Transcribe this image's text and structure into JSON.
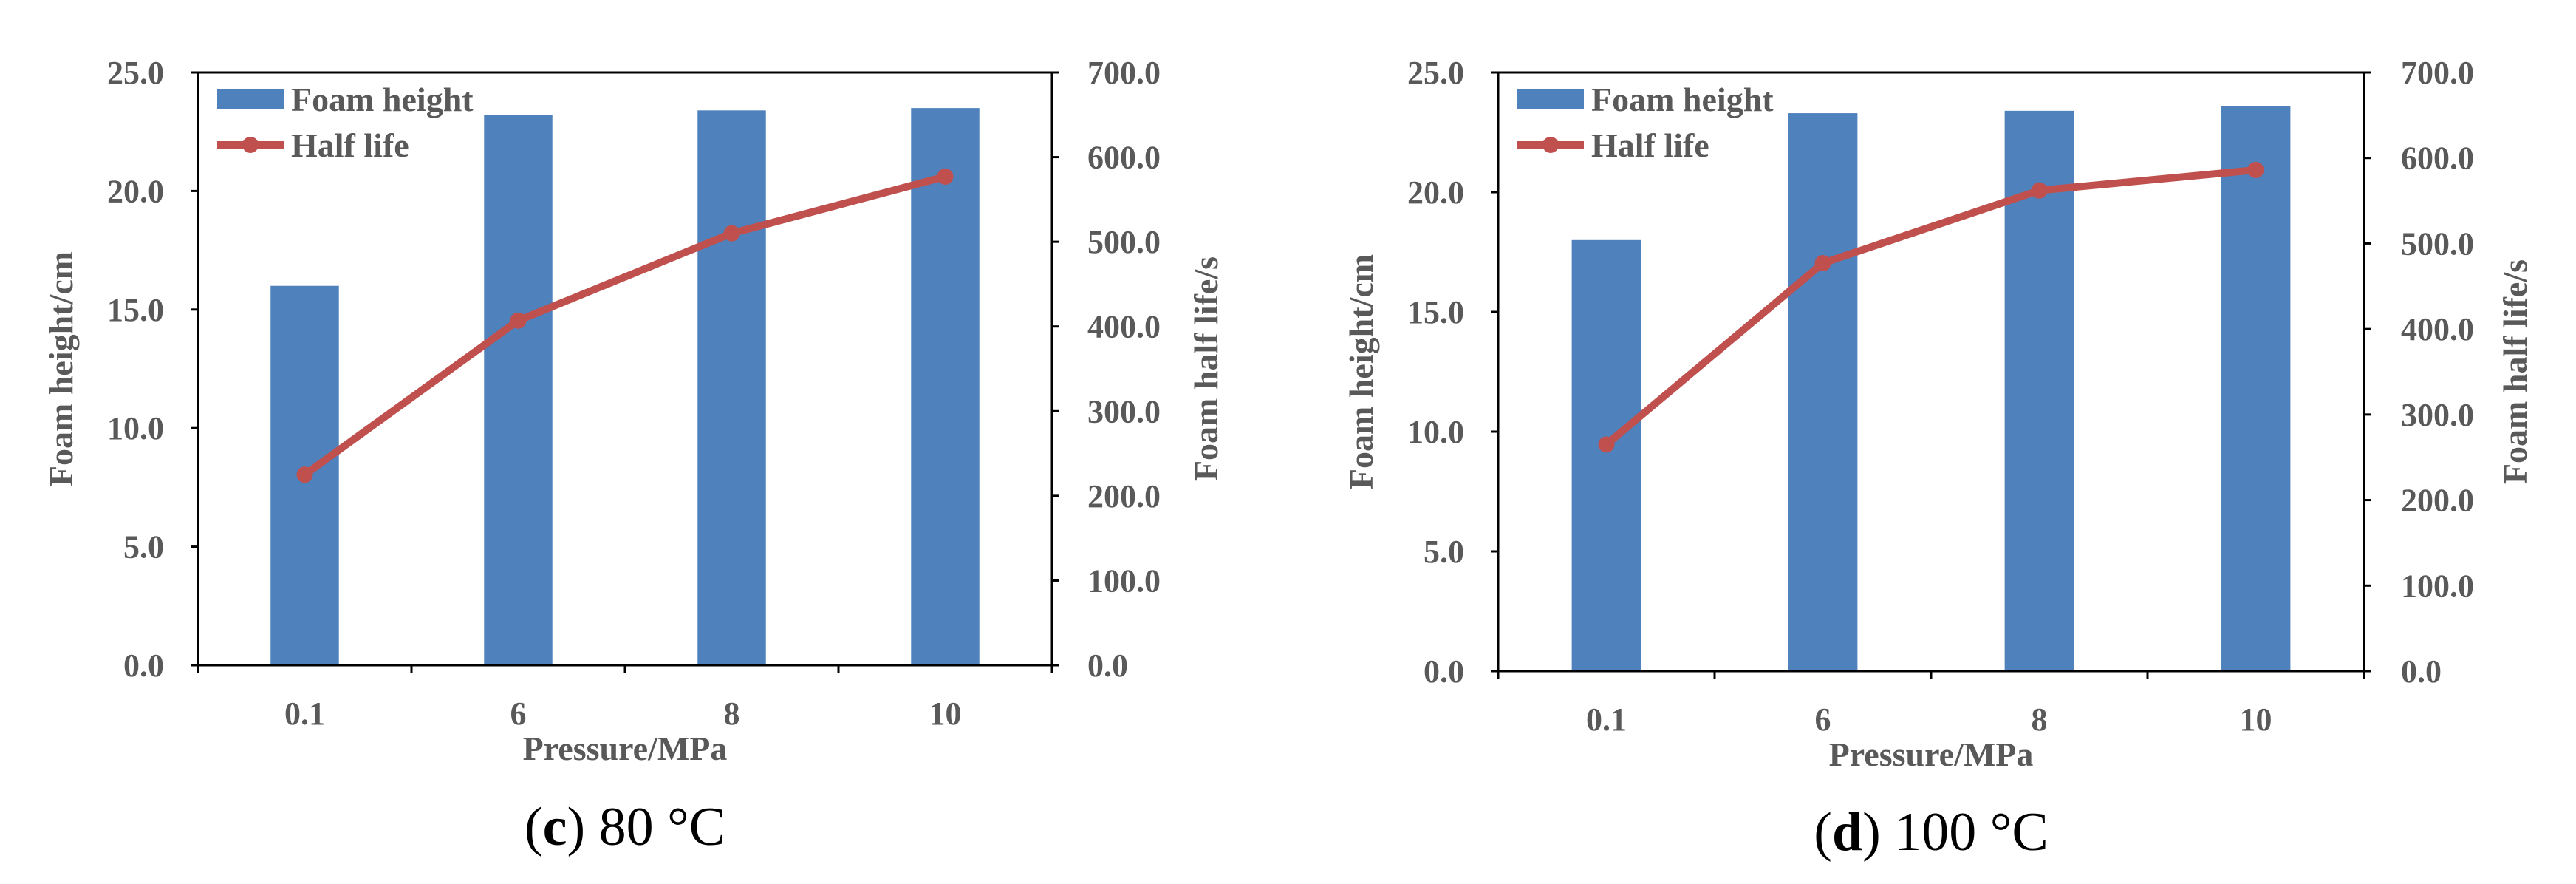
{
  "chart_data": [
    {
      "type": "bar",
      "caption": {
        "letter": "c",
        "open": "(",
        "close": ")",
        "rest": " 80 °C"
      },
      "categories": [
        "0.1",
        "6",
        "8",
        "10"
      ],
      "series": [
        {
          "name": "Foam height",
          "kind": "bar",
          "axis": "left",
          "values": [
            16.0,
            23.2,
            23.4,
            23.5
          ]
        },
        {
          "name": "Half life",
          "kind": "line",
          "axis": "right",
          "values": [
            225,
            407,
            510,
            577
          ]
        }
      ],
      "xlabel": "Pressure/MPa",
      "ylabel": "Foam height/cm",
      "y2label": "Foam half life/s",
      "ylim": [
        0,
        25
      ],
      "y2lim": [
        0,
        700
      ],
      "yticks": [
        "0.0",
        "5.0",
        "10.0",
        "15.0",
        "20.0",
        "25.0"
      ],
      "y2ticks": [
        "0.0",
        "100.0",
        "200.0",
        "300.0",
        "400.0",
        "500.0",
        "600.0",
        "700.0"
      ],
      "legend": "top-left",
      "grid": false
    },
    {
      "type": "bar",
      "caption": {
        "letter": "d",
        "open": "(",
        "close": ")",
        "rest": " 100 °C"
      },
      "categories": [
        "0.1",
        "6",
        "8",
        "10"
      ],
      "series": [
        {
          "name": "Foam height",
          "kind": "bar",
          "axis": "left",
          "values": [
            18.0,
            23.3,
            23.4,
            23.6
          ]
        },
        {
          "name": "Half life",
          "kind": "line",
          "axis": "right",
          "values": [
            265,
            477,
            562,
            586
          ]
        }
      ],
      "xlabel": "Pressure/MPa",
      "ylabel": "Foam height/cm",
      "y2label": "Foam half life/s",
      "ylim": [
        0,
        25
      ],
      "y2lim": [
        0,
        700
      ],
      "yticks": [
        "0.0",
        "5.0",
        "10.0",
        "15.0",
        "20.0",
        "25.0"
      ],
      "y2ticks": [
        "0.0",
        "100.0",
        "200.0",
        "300.0",
        "400.0",
        "500.0",
        "600.0",
        "700.0"
      ],
      "legend": "top-left",
      "grid": false
    }
  ],
  "colors": {
    "bar": "#4f81bd",
    "line": "#c0504d",
    "axis": "#000000",
    "text": "#595959"
  }
}
